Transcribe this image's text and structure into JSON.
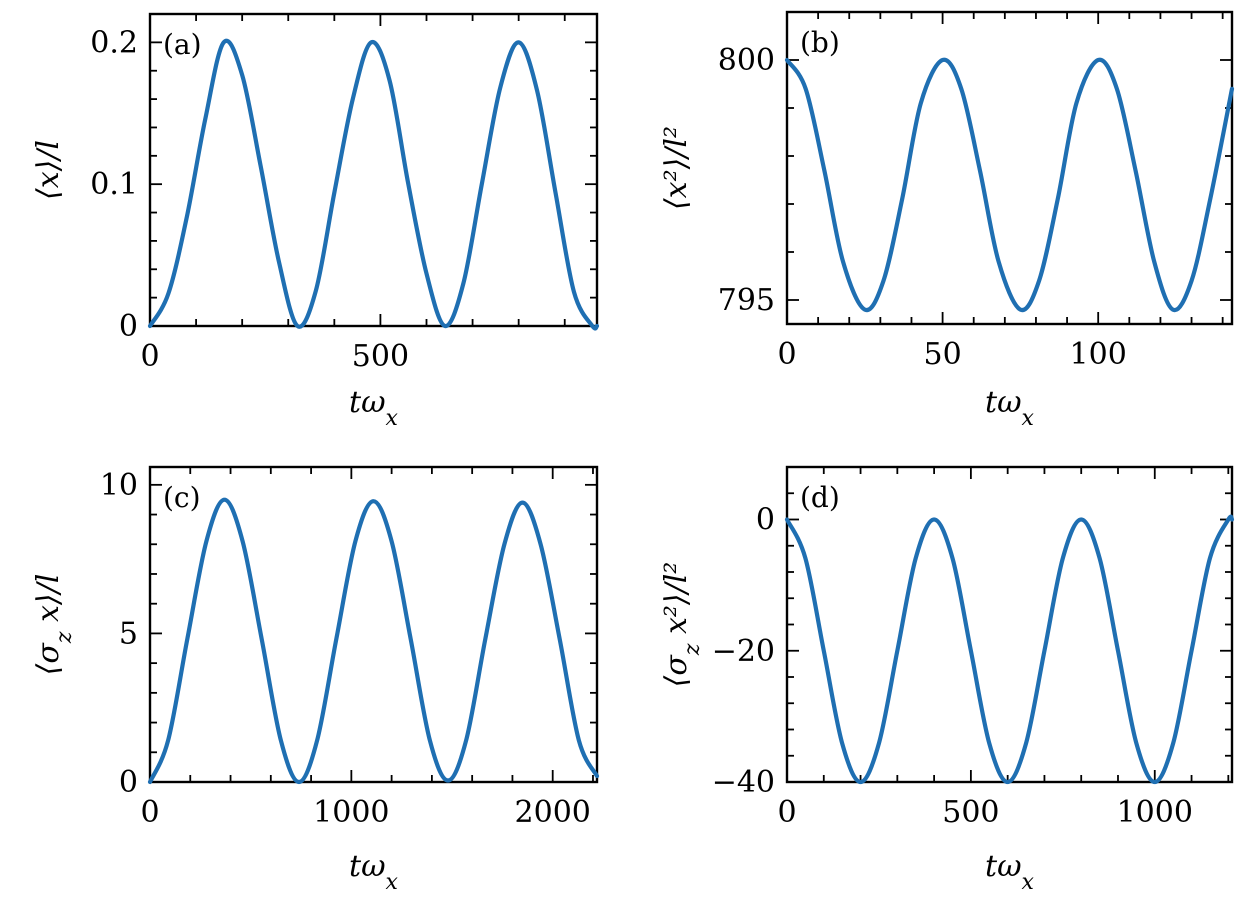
{
  "chart_data": [
    {
      "type": "line",
      "panel_label": "(a)",
      "xlabel": "tω_x",
      "ylabel": "⟨x⟩/l",
      "xlim": [
        0,
        970
      ],
      "ylim": [
        0,
        0.22
      ],
      "x_ticks": [
        0,
        500
      ],
      "y_ticks": [
        0,
        0.1,
        0.2
      ],
      "x_tick_labels": [
        "0",
        "500"
      ],
      "y_tick_labels": [
        "0",
        "0.1",
        "0.2"
      ],
      "series": [
        {
          "color": "#1f6fb2",
          "x": [
            0,
            40,
            80,
            120,
            160,
            200,
            240,
            280,
            320,
            360,
            400,
            440,
            480,
            520,
            560,
            600,
            640,
            680,
            720,
            760,
            800,
            840,
            880,
            920,
            960,
            970
          ],
          "y": [
            0,
            0.023,
            0.077,
            0.146,
            0.2,
            0.177,
            0.113,
            0.045,
            0,
            0.025,
            0.094,
            0.16,
            0.2,
            0.173,
            0.101,
            0.037,
            0,
            0.03,
            0.1,
            0.168,
            0.2,
            0.166,
            0.094,
            0.024,
            0,
            0
          ]
        }
      ]
    },
    {
      "type": "line",
      "panel_label": "(b)",
      "xlabel": "tω_x",
      "ylabel": "⟨x²⟩/l²",
      "xlim": [
        0,
        143
      ],
      "ylim": [
        794.5,
        801
      ],
      "x_ticks": [
        0,
        50,
        100
      ],
      "y_ticks": [
        795,
        800
      ],
      "x_tick_labels": [
        "0",
        "50",
        "100"
      ],
      "y_tick_labels": [
        "795",
        "800"
      ],
      "series": [
        {
          "color": "#1f6fb2",
          "x": [
            0,
            6,
            12,
            18,
            25,
            31,
            37,
            43,
            50,
            56,
            62,
            68,
            75,
            81,
            87,
            93,
            100,
            106,
            112,
            118,
            124,
            130,
            136,
            143
          ],
          "y": [
            800,
            799.4,
            797.7,
            795.8,
            794.8,
            795.4,
            797.1,
            799.1,
            800,
            799.4,
            797.7,
            795.8,
            794.8,
            795.4,
            797.1,
            799.1,
            800,
            799.4,
            797.7,
            795.8,
            794.8,
            795.4,
            797.1,
            799.4
          ]
        }
      ]
    },
    {
      "type": "line",
      "panel_label": "(c)",
      "xlabel": "tω_x",
      "ylabel": "⟨σ_z x⟩/l",
      "xlim": [
        0,
        2220
      ],
      "ylim": [
        0,
        10.6
      ],
      "x_ticks": [
        0,
        1000,
        2000
      ],
      "y_ticks": [
        0,
        5,
        10
      ],
      "x_tick_labels": [
        "0",
        "1000",
        "2000"
      ],
      "y_tick_labels": [
        "0",
        "5",
        "10"
      ],
      "series": [
        {
          "color": "#1f6fb2",
          "x": [
            0,
            90,
            185,
            280,
            370,
            460,
            555,
            650,
            740,
            830,
            925,
            1020,
            1110,
            1200,
            1295,
            1390,
            1480,
            1570,
            1665,
            1760,
            1850,
            1940,
            2035,
            2130,
            2220
          ],
          "y": [
            0,
            1.4,
            4.8,
            8.1,
            9.5,
            8.1,
            4.8,
            1.4,
            0,
            1.4,
            4.8,
            8.1,
            9.45,
            8.1,
            4.8,
            1.4,
            0.05,
            1.4,
            4.8,
            8.0,
            9.4,
            8.0,
            4.8,
            1.4,
            0.2
          ]
        }
      ]
    },
    {
      "type": "line",
      "panel_label": "(d)",
      "xlabel": "tω_x",
      "ylabel": "⟨σ_z x²⟩/l²",
      "xlim": [
        0,
        1210
      ],
      "ylim": [
        -40,
        8
      ],
      "x_ticks": [
        0,
        500,
        1000
      ],
      "y_ticks": [
        -40,
        -20,
        0
      ],
      "x_tick_labels": [
        "0",
        "500",
        "1000"
      ],
      "y_tick_labels": [
        "−40",
        "−20",
        "0"
      ],
      "series": [
        {
          "color": "#1f6fb2",
          "x": [
            0,
            50,
            100,
            150,
            200,
            250,
            300,
            350,
            400,
            450,
            500,
            550,
            600,
            650,
            700,
            750,
            800,
            850,
            900,
            950,
            1000,
            1050,
            1100,
            1150,
            1200,
            1210
          ],
          "y": [
            0,
            -5.9,
            -20,
            -34.1,
            -40,
            -34.1,
            -20,
            -5.9,
            0,
            -5.9,
            -20,
            -34.1,
            -40,
            -34.1,
            -20,
            -5.9,
            0,
            -5.9,
            -20,
            -34.1,
            -40,
            -34.1,
            -20,
            -5.9,
            0,
            0
          ]
        }
      ]
    }
  ]
}
